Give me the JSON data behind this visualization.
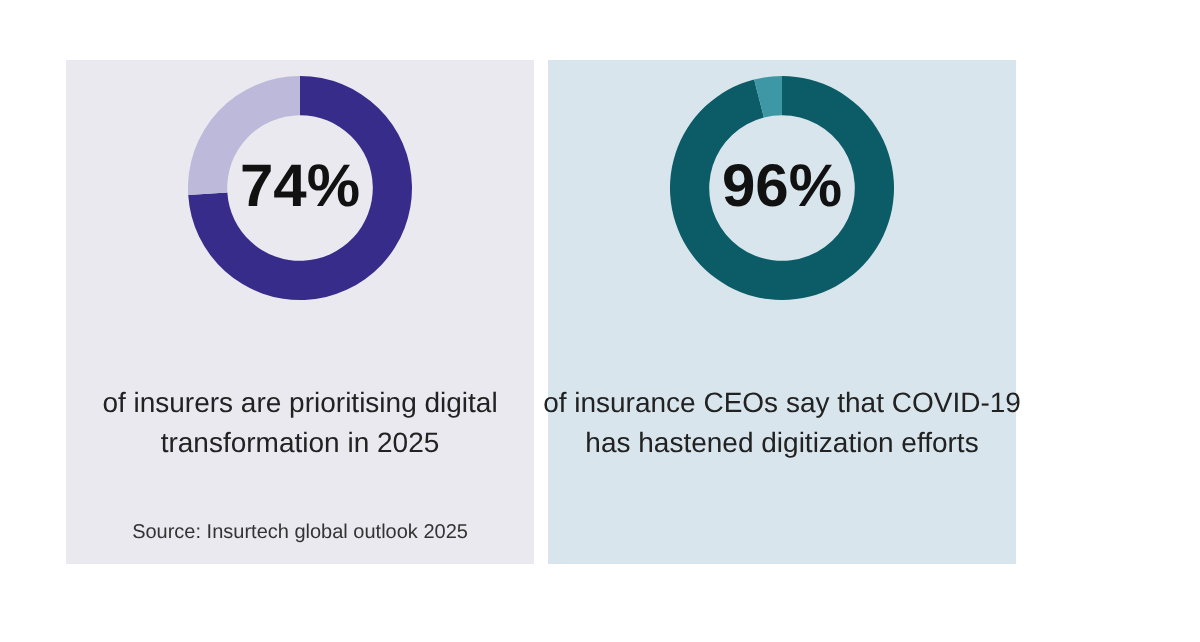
{
  "chart_data": [
    {
      "type": "donut",
      "categories": [
        null,
        null
      ],
      "values": [
        74,
        26
      ],
      "colors": [
        "#372c8a",
        "#bcb9da"
      ],
      "value_labels": [
        "74%",
        null
      ],
      "annotations": [
        "of insurers are prioritising digital transformation in 2025",
        "Source: Insurtech global outlook 2025"
      ]
    },
    {
      "type": "donut",
      "categories": [
        null,
        null
      ],
      "values": [
        96,
        4
      ],
      "colors": [
        "#0b5c66",
        "#3e97a5"
      ],
      "value_labels": [
        "96%",
        null
      ],
      "annotations": [
        "of insurance CEOs say that COVID-19 has hastened digitization efforts"
      ]
    }
  ]
}
